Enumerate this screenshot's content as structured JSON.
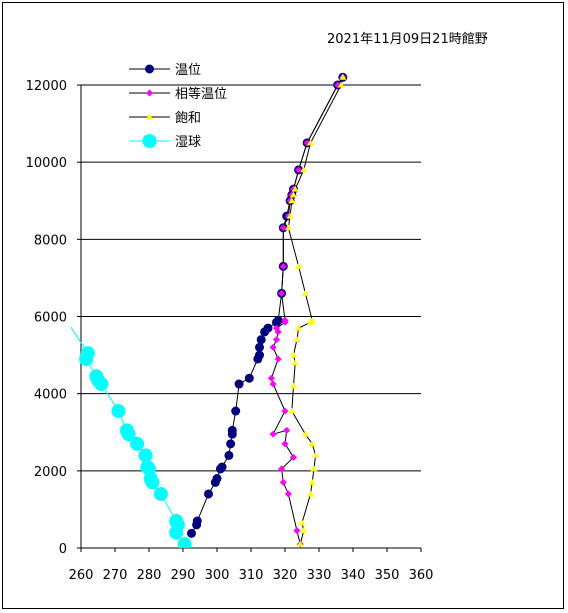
{
  "chart_data": {
    "type": "line",
    "title": "2021年11月09日21時館野",
    "xlabel": "",
    "ylabel": "",
    "xlim": [
      260,
      360
    ],
    "ylim": [
      0,
      12000
    ],
    "x_ticks": [
      260,
      270,
      280,
      290,
      300,
      310,
      320,
      330,
      340,
      350,
      360
    ],
    "y_ticks": [
      0,
      2000,
      4000,
      6000,
      8000,
      10000,
      12000
    ],
    "grid": "horizontal",
    "legend_position": "top-left",
    "series": [
      {
        "name": "温位",
        "color": "#000080",
        "points": [
          [
            292.5,
            380
          ],
          [
            294,
            600
          ],
          [
            294.2,
            700
          ],
          [
            297.5,
            1400
          ],
          [
            299.5,
            1700
          ],
          [
            300,
            1800
          ],
          [
            301,
            2050
          ],
          [
            301.5,
            2100
          ],
          [
            303.5,
            2400
          ],
          [
            304,
            2700
          ],
          [
            304.5,
            2950
          ],
          [
            304.5,
            3050
          ],
          [
            305.5,
            3550
          ],
          [
            306.5,
            4250
          ],
          [
            309.5,
            4400
          ],
          [
            312,
            4900
          ],
          [
            312.5,
            5000
          ],
          [
            312.5,
            5200
          ],
          [
            313,
            5400
          ],
          [
            314,
            5600
          ],
          [
            315,
            5700
          ],
          [
            317.5,
            5850
          ],
          [
            318,
            5900
          ],
          [
            319,
            6600
          ],
          [
            319.5,
            7300
          ],
          [
            319.5,
            8300
          ],
          [
            320.5,
            8600
          ],
          [
            321.5,
            9000
          ],
          [
            322,
            9150
          ],
          [
            322.5,
            9300
          ],
          [
            324,
            9800
          ],
          [
            326.5,
            10500
          ],
          [
            335.5,
            12000
          ],
          [
            337,
            12200
          ]
        ]
      },
      {
        "name": "相等温位",
        "color": "#ff00ff",
        "points": [
          [
            324.5,
            100
          ],
          [
            323.5,
            450
          ],
          [
            321,
            1400
          ],
          [
            319.5,
            1700
          ],
          [
            319,
            2050
          ],
          [
            322.5,
            2350
          ],
          [
            320,
            2700
          ],
          [
            320.5,
            3050
          ],
          [
            316.5,
            2950
          ],
          [
            320,
            3550
          ],
          [
            316.5,
            4250
          ],
          [
            316,
            4400
          ],
          [
            318,
            4900
          ],
          [
            316.5,
            5200
          ],
          [
            317.5,
            5400
          ],
          [
            318,
            5600
          ],
          [
            317.5,
            5700
          ],
          [
            320,
            5850
          ],
          [
            320,
            5900
          ],
          [
            319,
            6600
          ],
          [
            319.5,
            7300
          ],
          [
            319.5,
            8300
          ],
          [
            321,
            8600
          ],
          [
            321.5,
            9000
          ],
          [
            322,
            9150
          ],
          [
            322.5,
            9300
          ],
          [
            324,
            9800
          ],
          [
            326.5,
            10500
          ],
          [
            335.5,
            12000
          ],
          [
            337,
            12200
          ]
        ]
      },
      {
        "name": "飽和",
        "color": "#ffff00",
        "points": [
          [
            324.5,
            100
          ],
          [
            325.5,
            450
          ],
          [
            325,
            650
          ],
          [
            327.5,
            1400
          ],
          [
            328,
            1700
          ],
          [
            328.5,
            2050
          ],
          [
            329,
            2400
          ],
          [
            328,
            2700
          ],
          [
            326,
            2950
          ],
          [
            322,
            3550
          ],
          [
            322.5,
            4200
          ],
          [
            323,
            4800
          ],
          [
            322.5,
            5000
          ],
          [
            323.5,
            5400
          ],
          [
            324,
            5700
          ],
          [
            327.5,
            5850
          ],
          [
            328,
            5900
          ],
          [
            326,
            6600
          ],
          [
            324,
            7300
          ],
          [
            321,
            8300
          ],
          [
            321.5,
            8600
          ],
          [
            322,
            9000
          ],
          [
            322.5,
            9150
          ],
          [
            323,
            9300
          ],
          [
            325.5,
            9800
          ],
          [
            327.5,
            10500
          ],
          [
            336.5,
            12000
          ],
          [
            337,
            12200
          ]
        ]
      },
      {
        "name": "湿球",
        "color": "#00ffff",
        "points": [
          [
            255,
            6000
          ],
          [
            262,
            5050
          ],
          [
            261.5,
            4900
          ],
          [
            264.5,
            4450
          ],
          [
            265,
            4350
          ],
          [
            266,
            4250
          ],
          [
            271,
            3550
          ],
          [
            273.5,
            3050
          ],
          [
            274,
            2950
          ],
          [
            276.5,
            2700
          ],
          [
            279,
            2400
          ],
          [
            279.5,
            2100
          ],
          [
            280,
            2050
          ],
          [
            280.5,
            1800
          ],
          [
            281,
            1700
          ],
          [
            283.5,
            1400
          ],
          [
            288,
            700
          ],
          [
            288.5,
            600
          ],
          [
            288,
            400
          ],
          [
            290.5,
            100
          ]
        ]
      }
    ]
  }
}
